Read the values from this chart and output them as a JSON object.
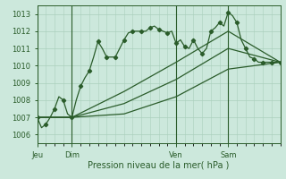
{
  "xlabel": "Pression niveau de la mer( hPa )",
  "bg_color": "#cce8dc",
  "grid_color": "#aacfbc",
  "line_color": "#2a5c2a",
  "ylim": [
    1005.5,
    1013.5
  ],
  "yticks": [
    1006,
    1007,
    1008,
    1009,
    1010,
    1011,
    1012,
    1013
  ],
  "day_labels": [
    "Jeu",
    "Dim",
    "Ven",
    "Sam"
  ],
  "day_positions": [
    0,
    16,
    64,
    88
  ],
  "total_hours": 112,
  "line1_x": [
    0,
    2,
    4,
    6,
    8,
    10,
    12,
    14,
    16,
    18,
    20,
    22,
    24,
    26,
    28,
    30,
    32,
    34,
    36,
    38,
    40,
    42,
    44,
    46,
    48,
    50,
    52,
    54,
    56,
    58,
    60,
    62,
    64,
    66,
    68,
    70,
    72,
    74,
    76,
    78,
    80,
    82,
    84,
    86,
    88,
    90,
    92,
    94,
    96,
    98,
    100,
    102,
    104,
    106,
    108,
    110,
    112
  ],
  "line1_y": [
    1007.0,
    1006.4,
    1006.6,
    1007.0,
    1007.5,
    1008.2,
    1008.0,
    1007.2,
    1007.0,
    1008.0,
    1008.8,
    1009.3,
    1009.7,
    1010.5,
    1011.4,
    1011.0,
    1010.5,
    1010.5,
    1010.5,
    1011.0,
    1011.5,
    1011.9,
    1012.0,
    1012.0,
    1012.0,
    1012.0,
    1012.2,
    1012.3,
    1012.1,
    1012.0,
    1011.9,
    1012.0,
    1011.3,
    1011.5,
    1011.1,
    1011.0,
    1011.5,
    1011.0,
    1010.7,
    1011.0,
    1012.0,
    1012.2,
    1012.5,
    1012.3,
    1013.1,
    1012.9,
    1012.5,
    1011.5,
    1011.0,
    1010.5,
    1010.4,
    1010.2,
    1010.2,
    1010.2,
    1010.2,
    1010.2,
    1010.2
  ],
  "line2_x": [
    0,
    16,
    40,
    64,
    88,
    112
  ],
  "line2_y": [
    1007.0,
    1007.0,
    1008.5,
    1010.2,
    1012.0,
    1010.2
  ],
  "line3_x": [
    0,
    16,
    40,
    64,
    88,
    112
  ],
  "line3_y": [
    1007.0,
    1007.0,
    1007.8,
    1009.2,
    1011.0,
    1010.2
  ],
  "line4_x": [
    0,
    16,
    40,
    64,
    88,
    112
  ],
  "line4_y": [
    1007.0,
    1007.0,
    1007.2,
    1008.2,
    1009.8,
    1010.2
  ]
}
